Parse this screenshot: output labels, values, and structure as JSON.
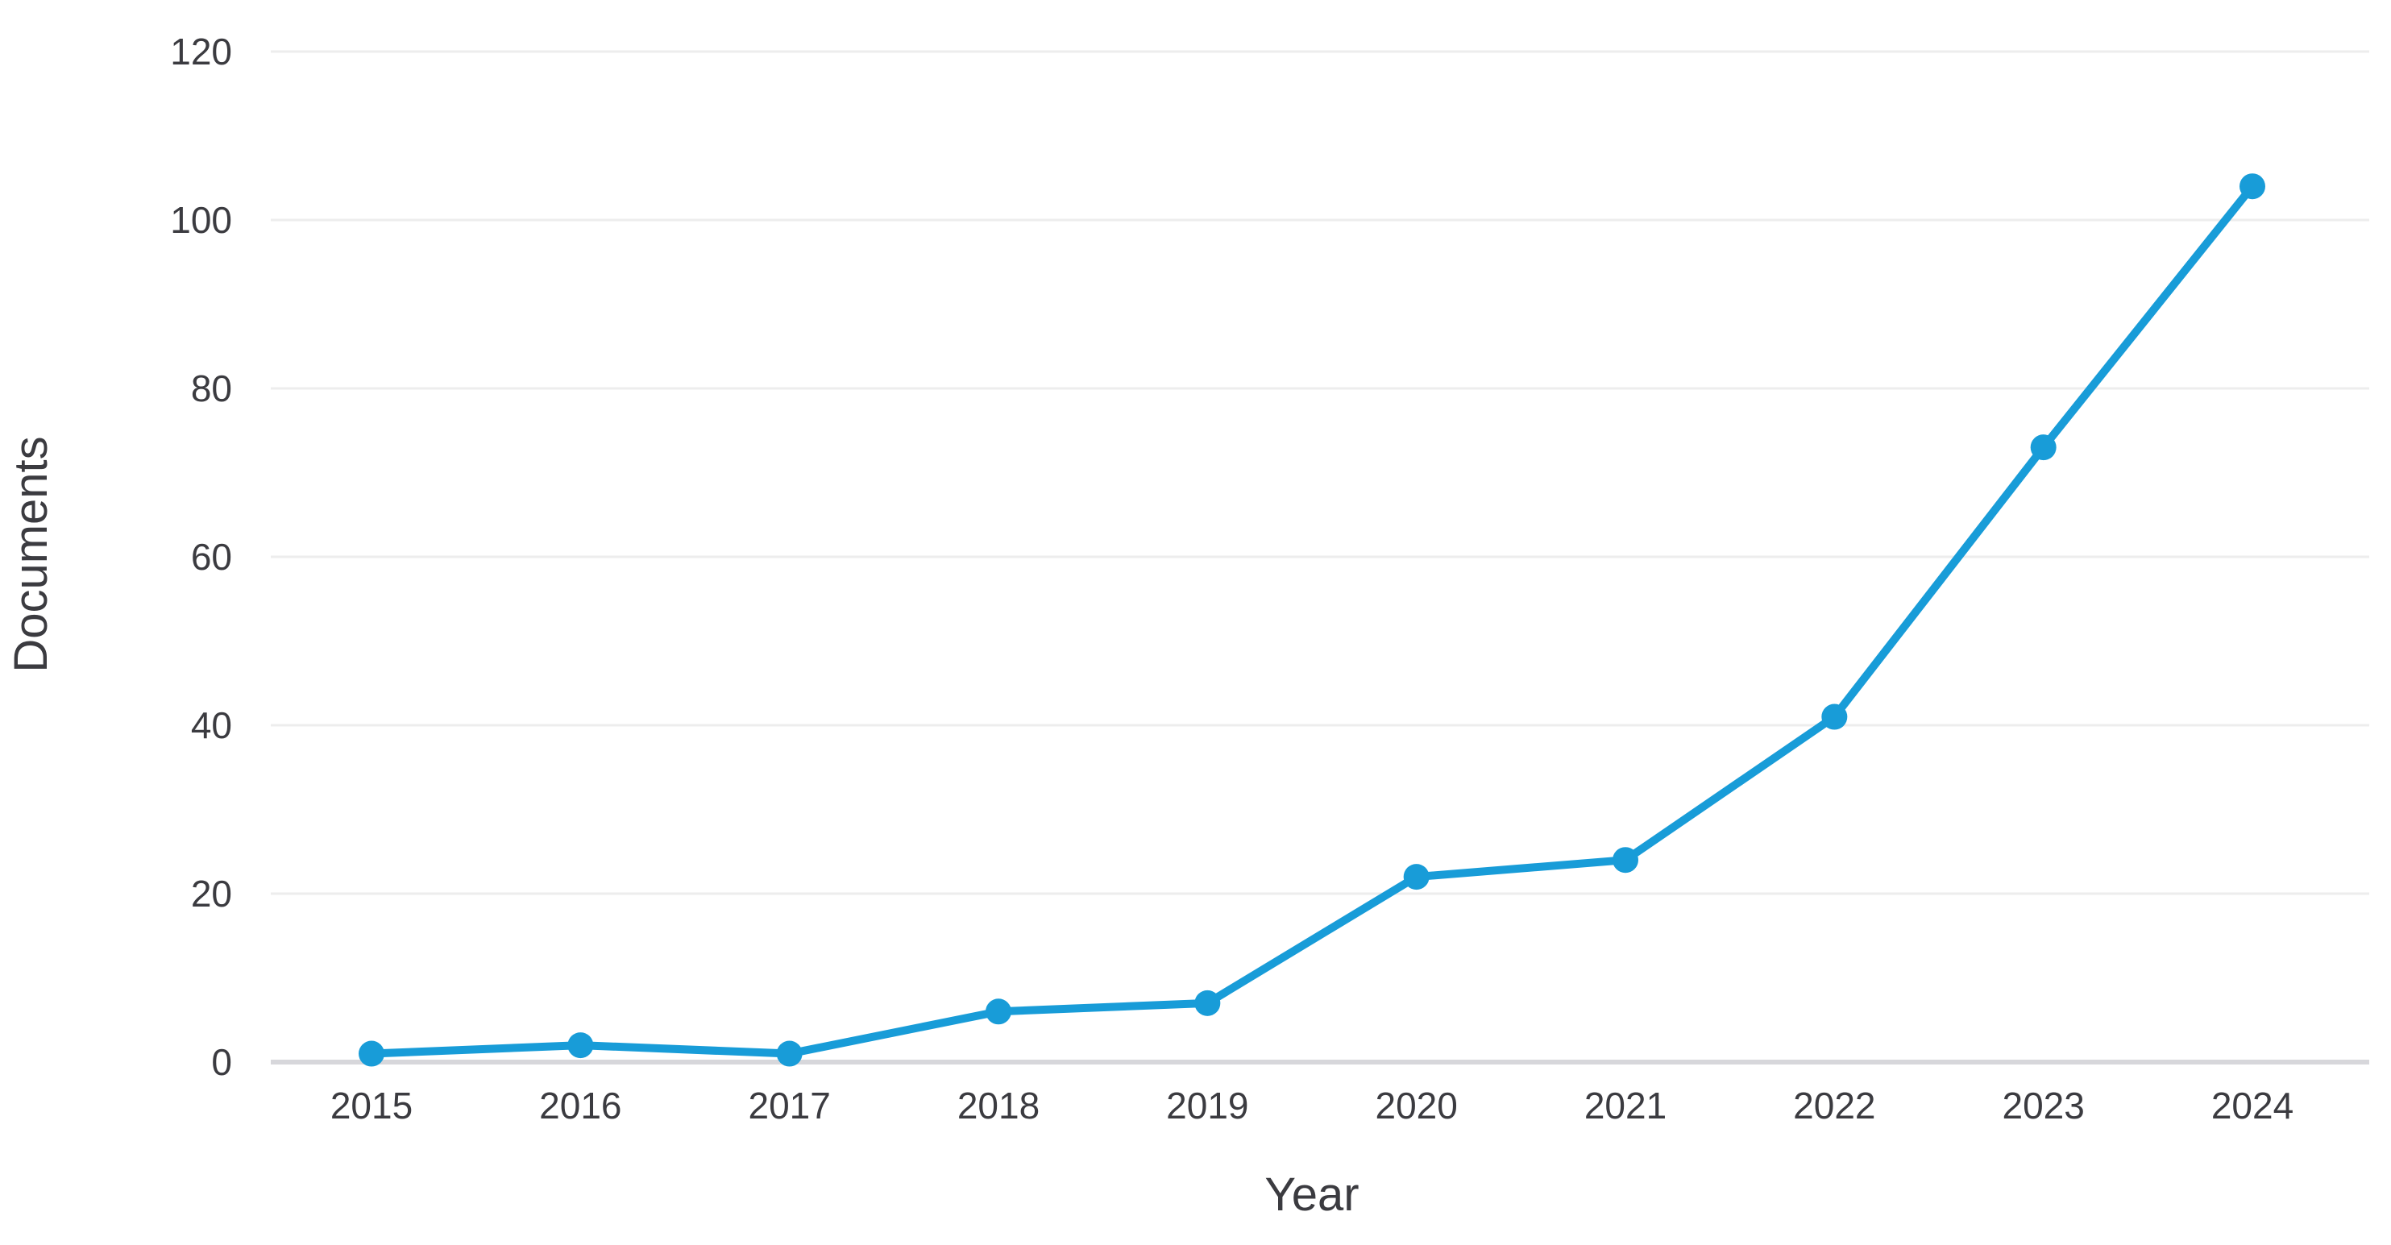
{
  "chart_style": {
    "line_color": "#189cd8",
    "marker_color": "#189cd8",
    "grid_color": "#ededed",
    "zero_line_color": "#d7d7db",
    "tick_text_color": "#3b3b40",
    "axis_title_color": "#3b3b40",
    "background": "#ffffff"
  },
  "chart_data": {
    "type": "line",
    "title": "",
    "x": [
      "2015",
      "2016",
      "2017",
      "2018",
      "2019",
      "2020",
      "2021",
      "2022",
      "2023",
      "2024"
    ],
    "series": [
      {
        "name": "Documents",
        "values": [
          1,
          2,
          1,
          6,
          7,
          22,
          24,
          41,
          73,
          104
        ]
      }
    ],
    "xlabel": "Year",
    "ylabel": "Documents",
    "ylim": [
      0,
      120
    ],
    "yticks": [
      0,
      20,
      40,
      60,
      80,
      100,
      120
    ],
    "grid": "horizontal",
    "legend": "none",
    "marker": "circle"
  }
}
